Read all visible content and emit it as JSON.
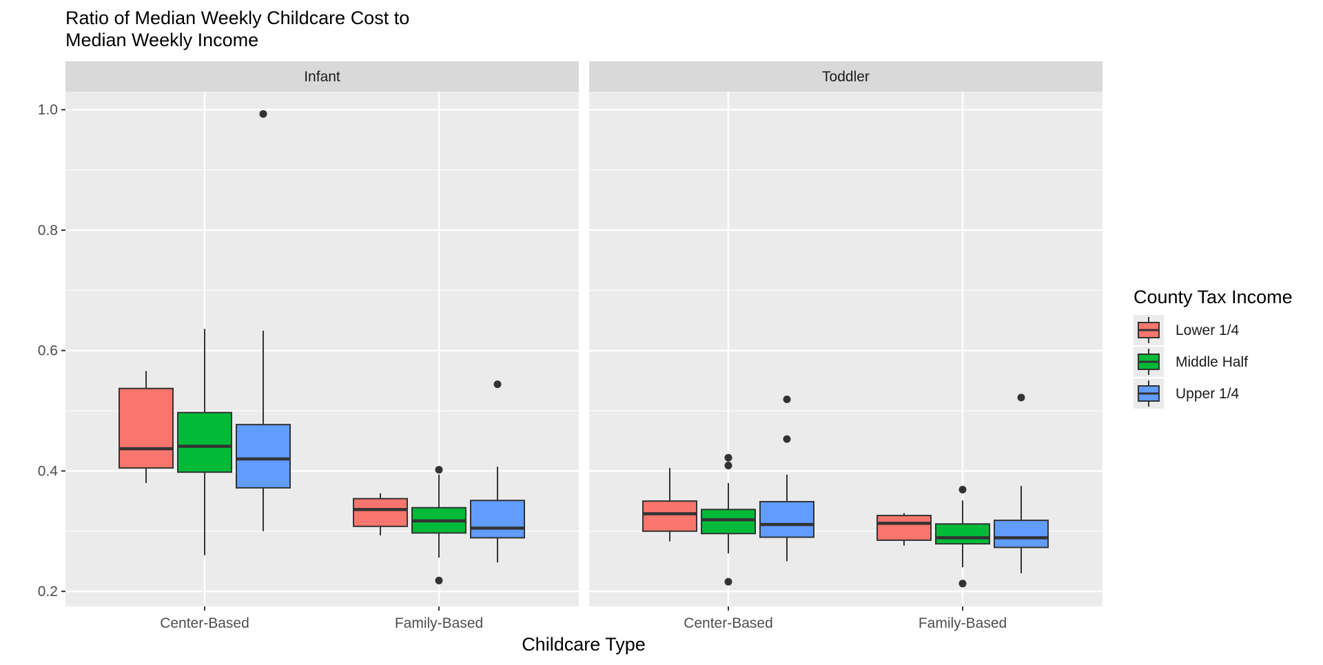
{
  "chart_data": {
    "type": "boxplot",
    "title": "Ratio of Median Weekly Childcare Cost to\nMedian Weekly Income",
    "xlabel": "Childcare Type",
    "ylabel": "",
    "ylim": [
      0.175,
      1.03
    ],
    "yticks": [
      0.2,
      0.4,
      0.6,
      0.8,
      1.0
    ],
    "ytick_labels": [
      "0.2",
      "0.4",
      "0.6",
      "0.8",
      "1.0"
    ],
    "categories": [
      "Center-Based",
      "Family-Based"
    ],
    "grid": true,
    "legend": {
      "title": "County Tax Income",
      "position": "right",
      "entries": [
        {
          "name": "Lower 1/4",
          "color": "#F8766D"
        },
        {
          "name": "Middle Half",
          "color": "#00BA38"
        },
        {
          "name": "Upper 1/4",
          "color": "#619CFF"
        }
      ]
    },
    "panels": [
      {
        "name": "Infant",
        "groups": [
          {
            "category": "Center-Based",
            "boxes": [
              {
                "series": "Lower 1/4",
                "lower_whisker": 0.38,
                "q1": 0.405,
                "median": 0.437,
                "q3": 0.537,
                "upper_whisker": 0.566,
                "outliers": []
              },
              {
                "series": "Middle Half",
                "lower_whisker": 0.26,
                "q1": 0.398,
                "median": 0.441,
                "q3": 0.497,
                "upper_whisker": 0.636,
                "outliers": []
              },
              {
                "series": "Upper 1/4",
                "lower_whisker": 0.3,
                "q1": 0.372,
                "median": 0.42,
                "q3": 0.477,
                "upper_whisker": 0.633,
                "outliers": [
                  0.993
                ]
              }
            ]
          },
          {
            "category": "Family-Based",
            "boxes": [
              {
                "series": "Lower 1/4",
                "lower_whisker": 0.293,
                "q1": 0.308,
                "median": 0.336,
                "q3": 0.354,
                "upper_whisker": 0.363,
                "outliers": []
              },
              {
                "series": "Middle Half",
                "lower_whisker": 0.256,
                "q1": 0.297,
                "median": 0.317,
                "q3": 0.339,
                "upper_whisker": 0.394,
                "outliers": [
                  0.402,
                  0.218
                ]
              },
              {
                "series": "Upper 1/4",
                "lower_whisker": 0.248,
                "q1": 0.289,
                "median": 0.305,
                "q3": 0.351,
                "upper_whisker": 0.407,
                "outliers": [
                  0.544
                ]
              }
            ]
          }
        ]
      },
      {
        "name": "Toddler",
        "groups": [
          {
            "category": "Center-Based",
            "boxes": [
              {
                "series": "Lower 1/4",
                "lower_whisker": 0.283,
                "q1": 0.3,
                "median": 0.329,
                "q3": 0.35,
                "upper_whisker": 0.405,
                "outliers": []
              },
              {
                "series": "Middle Half",
                "lower_whisker": 0.263,
                "q1": 0.296,
                "median": 0.319,
                "q3": 0.336,
                "upper_whisker": 0.38,
                "outliers": [
                  0.422,
                  0.409,
                  0.216
                ]
              },
              {
                "series": "Upper 1/4",
                "lower_whisker": 0.25,
                "q1": 0.29,
                "median": 0.311,
                "q3": 0.349,
                "upper_whisker": 0.394,
                "outliers": [
                  0.519,
                  0.453
                ]
              }
            ]
          },
          {
            "category": "Family-Based",
            "boxes": [
              {
                "series": "Lower 1/4",
                "lower_whisker": 0.276,
                "q1": 0.285,
                "median": 0.313,
                "q3": 0.326,
                "upper_whisker": 0.33,
                "outliers": []
              },
              {
                "series": "Middle Half",
                "lower_whisker": 0.24,
                "q1": 0.279,
                "median": 0.289,
                "q3": 0.312,
                "upper_whisker": 0.351,
                "outliers": [
                  0.369,
                  0.213
                ]
              },
              {
                "series": "Upper 1/4",
                "lower_whisker": 0.23,
                "q1": 0.273,
                "median": 0.289,
                "q3": 0.318,
                "upper_whisker": 0.375,
                "outliers": [
                  0.522
                ]
              }
            ]
          }
        ]
      }
    ]
  }
}
